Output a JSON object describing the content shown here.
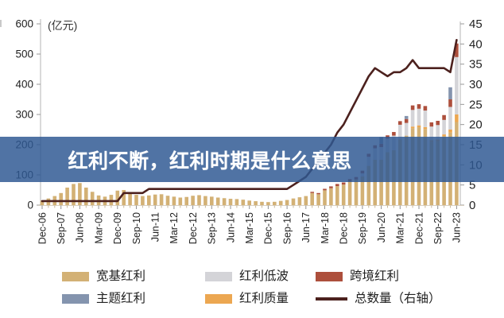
{
  "banner": {
    "title": "红利不断，红利时期是什么意思"
  },
  "unit_label": "(亿元)",
  "colors": {
    "broad_base": "#d3b175",
    "low_vol": "#d4d4d8",
    "cross_border": "#ad4f3c",
    "theme": "#8494ae",
    "quality": "#eca751",
    "total_line": "#4c211e",
    "banner_bg": "#2e5893",
    "axis_text": "#222222"
  },
  "legend": {
    "items": [
      {
        "label": "宽基红利",
        "color": "#d3b175",
        "type": "box"
      },
      {
        "label": "红利低波",
        "color": "#d4d4d8",
        "type": "box"
      },
      {
        "label": "跨境红利",
        "color": "#ad4f3c",
        "type": "box"
      },
      {
        "label": "主题红利",
        "color": "#8494ae",
        "type": "box"
      },
      {
        "label": "红利质量",
        "color": "#eca751",
        "type": "box"
      },
      {
        "label": "总数量（右轴）",
        "color": "#4c211e",
        "type": "line"
      }
    ]
  },
  "chart_data": {
    "type": "bar",
    "subtype": "stacked-bars-with-line",
    "title": "",
    "x_tick_step": 3,
    "left_axis": {
      "label": "(亿元)",
      "ticks": [
        600,
        500,
        400,
        300,
        200,
        100,
        0
      ],
      "range": [
        0,
        600
      ]
    },
    "right_axis": {
      "label": "总数量（右轴）",
      "ticks": [
        45,
        40,
        35,
        30,
        25,
        20,
        15,
        10,
        5,
        0
      ],
      "range": [
        0,
        45
      ]
    },
    "categories": [
      "Dec-06",
      "Mar-07",
      "Jun-07",
      "Sep-07",
      "Dec-07",
      "Mar-08",
      "Jun-08",
      "Sep-08",
      "Dec-08",
      "Mar-09",
      "Jun-09",
      "Sep-09",
      "Dec-09",
      "Mar-10",
      "Jun-10",
      "Sep-10",
      "Dec-10",
      "Mar-11",
      "Jun-11",
      "Sep-11",
      "Dec-11",
      "Mar-12",
      "Jun-12",
      "Sep-12",
      "Dec-12",
      "Mar-13",
      "Jun-13",
      "Sep-13",
      "Dec-13",
      "Mar-14",
      "Jun-14",
      "Sep-14",
      "Dec-14",
      "Mar-15",
      "Jun-15",
      "Sep-15",
      "Dec-15",
      "Mar-16",
      "Jun-16",
      "Sep-16",
      "Dec-16",
      "Mar-17",
      "Jun-17",
      "Sep-17",
      "Dec-17",
      "Mar-18",
      "Jun-18",
      "Sep-18",
      "Dec-18",
      "Mar-19",
      "Jun-19",
      "Sep-19",
      "Dec-19",
      "Mar-20",
      "Jun-20",
      "Sep-20",
      "Dec-20",
      "Mar-21",
      "Jun-21",
      "Sep-21",
      "Dec-21",
      "Mar-22",
      "Jun-22",
      "Sep-22",
      "Dec-22",
      "Mar-23",
      "Jun-23"
    ],
    "series": [
      {
        "name": "宽基红利",
        "color": "#d3b175",
        "axis": "left",
        "values": [
          15,
          22,
          30,
          40,
          58,
          70,
          73,
          58,
          44,
          32,
          28,
          34,
          48,
          50,
          40,
          34,
          30,
          32,
          35,
          36,
          31,
          28,
          25,
          27,
          31,
          33,
          30,
          28,
          25,
          23,
          21,
          20,
          18,
          15,
          13,
          11,
          10,
          11,
          14,
          17,
          22,
          26,
          30,
          40,
          36,
          49,
          56,
          63,
          68,
          78,
          85,
          95,
          130,
          150,
          150,
          175,
          182,
          218,
          230,
          255,
          258,
          252,
          210,
          212,
          228,
          240,
          275
        ]
      },
      {
        "name": "红利质量",
        "color": "#eca751",
        "axis": "left",
        "values": [
          0,
          0,
          0,
          0,
          0,
          0,
          0,
          0,
          0,
          0,
          0,
          0,
          0,
          0,
          0,
          0,
          0,
          0,
          0,
          0,
          0,
          0,
          0,
          0,
          0,
          0,
          0,
          0,
          0,
          0,
          0,
          0,
          0,
          0,
          0,
          0,
          0,
          0,
          0,
          0,
          0,
          0,
          0,
          0,
          0,
          0,
          0,
          0,
          0,
          0,
          0,
          0,
          0,
          0,
          0,
          0,
          0,
          0,
          0,
          5,
          6,
          6,
          5,
          5,
          6,
          10,
          25
        ]
      },
      {
        "name": "红利低波",
        "color": "#d4d4d8",
        "axis": "left",
        "values": [
          0,
          0,
          0,
          0,
          0,
          0,
          0,
          0,
          0,
          0,
          0,
          0,
          0,
          0,
          0,
          0,
          0,
          0,
          0,
          0,
          0,
          0,
          0,
          0,
          0,
          0,
          0,
          0,
          0,
          0,
          0,
          0,
          0,
          0,
          0,
          0,
          0,
          0,
          0,
          0,
          0,
          0,
          0,
          0,
          0,
          0,
          0,
          0,
          0,
          0,
          0,
          10,
          30,
          38,
          42,
          45,
          48,
          48,
          42,
          55,
          55,
          55,
          45,
          48,
          48,
          75,
          190
        ]
      },
      {
        "name": "跨境红利",
        "color": "#ad4f3c",
        "axis": "left",
        "values": [
          0,
          0,
          0,
          0,
          0,
          0,
          0,
          0,
          0,
          0,
          0,
          0,
          0,
          0,
          0,
          0,
          0,
          0,
          0,
          0,
          0,
          0,
          0,
          0,
          0,
          0,
          0,
          0,
          0,
          0,
          0,
          0,
          0,
          0,
          0,
          0,
          0,
          0,
          0,
          0,
          0,
          0,
          0,
          4,
          4,
          5,
          6,
          7,
          7,
          8,
          8,
          9,
          10,
          10,
          11,
          11,
          12,
          12,
          13,
          15,
          15,
          15,
          14,
          14,
          16,
          25,
          45
        ]
      },
      {
        "name": "主题红利",
        "color": "#8494ae",
        "axis": "left",
        "values": [
          0,
          0,
          0,
          0,
          0,
          0,
          0,
          0,
          0,
          0,
          0,
          0,
          0,
          0,
          0,
          0,
          0,
          0,
          0,
          0,
          0,
          0,
          0,
          0,
          0,
          0,
          0,
          0,
          0,
          0,
          0,
          0,
          0,
          0,
          0,
          0,
          0,
          0,
          0,
          0,
          0,
          0,
          0,
          0,
          0,
          0,
          0,
          0,
          0,
          0,
          0,
          0,
          0,
          0,
          22,
          0,
          0,
          0,
          10,
          0,
          0,
          0,
          0,
          0,
          0,
          40,
          0
        ]
      }
    ],
    "line_series": {
      "name": "总数量（右轴）",
      "color": "#4c211e",
      "axis": "right",
      "values": [
        1,
        1,
        1,
        1,
        1,
        1,
        1,
        1,
        1,
        1,
        1,
        1,
        1,
        3,
        3,
        3,
        3,
        4,
        4,
        4,
        4,
        4,
        4,
        4,
        4,
        4,
        4,
        4,
        4,
        4,
        4,
        4,
        4,
        4,
        4,
        4,
        4,
        4,
        4,
        4,
        5,
        6,
        7,
        9,
        11,
        13,
        15,
        18,
        20,
        23,
        26,
        29,
        32,
        34,
        33,
        32,
        33,
        33,
        34,
        36,
        34,
        34,
        34,
        34,
        34,
        33,
        41
      ]
    },
    "grid": false,
    "legend_position": "bottom"
  }
}
